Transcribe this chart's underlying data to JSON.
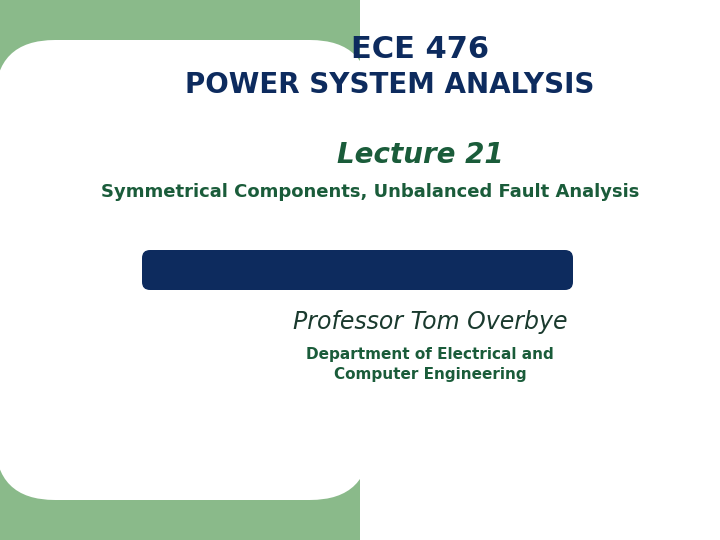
{
  "bg_color_left": "#8aba8a",
  "bg_color_right": "#ffffff",
  "title1": "ECE 476",
  "title2": "POWER SYSTEM ANALYSIS",
  "lecture": "Lecture 21",
  "subtitle": "Symmetrical Components, Unbalanced Fault Analysis",
  "bar_color": "#0d2b5e",
  "professor": "Professor Tom Overbye",
  "department1": "Department of Electrical and",
  "department2": "Computer Engineering",
  "title_color": "#0d2b5e",
  "lecture_color": "#1a5c3a",
  "subtitle_color": "#1a5c3a",
  "professor_color": "#1a3a2e",
  "dept_color": "#1a5c3a",
  "rounded_rect_color": "#ffffff",
  "fig_width": 7.2,
  "fig_height": 5.4,
  "dpi": 100
}
